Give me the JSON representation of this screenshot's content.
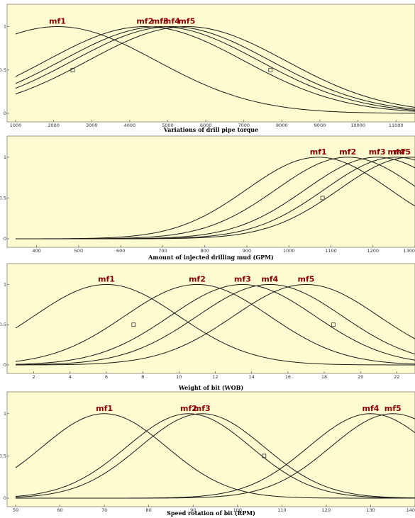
{
  "chart_data": [
    {
      "type": "line",
      "xlabel": "Variations of drill pipe torque",
      "xlim": [
        1000,
        11500
      ],
      "ylim": [
        0,
        1
      ],
      "x_ticks": [
        "1000",
        "2000",
        "3000",
        "4000",
        "5000",
        "6000",
        "7000",
        "8000",
        "9000",
        "10000",
        "11000"
      ],
      "y_ticks": [
        "0",
        "0.5",
        "1"
      ],
      "sigma": 2600,
      "series": [
        {
          "name": "mf1",
          "center": 2100
        },
        {
          "name": "mf2",
          "center": 4400
        },
        {
          "name": "mf3",
          "center": 4800
        },
        {
          "name": "mf4",
          "center": 5100
        },
        {
          "name": "mf5",
          "center": 5500
        }
      ],
      "markers": [
        [
          2500,
          0.5
        ],
        [
          7700,
          0.5
        ]
      ]
    },
    {
      "type": "line",
      "xlabel": "Amount of injected drilling mud (GPM)",
      "xlim": [
        350,
        1300
      ],
      "ylim": [
        0,
        1
      ],
      "x_ticks": [
        "400",
        "500",
        "600",
        "700",
        "800",
        "900",
        "1000",
        "1100",
        "1200",
        "1300"
      ],
      "y_ticks": [
        "0",
        "0.5",
        "1"
      ],
      "sigma": 170,
      "series": [
        {
          "name": "mf1",
          "center": 1070
        },
        {
          "name": "mf2",
          "center": 1140
        },
        {
          "name": "mf3",
          "center": 1210
        },
        {
          "name": "mf4",
          "center": 1255
        },
        {
          "name": "mf5",
          "center": 1290
        }
      ],
      "markers": [
        [
          1080,
          0.5
        ]
      ]
    },
    {
      "type": "line",
      "xlabel": "Weight of bit (WOB)",
      "xlim": [
        1,
        23
      ],
      "ylim": [
        0,
        1
      ],
      "x_ticks": [
        "2",
        "4",
        "6",
        "8",
        "10",
        "12",
        "14",
        "16",
        "18",
        "20",
        "22"
      ],
      "y_ticks": [
        "0",
        "0.5",
        "1"
      ],
      "sigma": 4,
      "series": [
        {
          "name": "mf1",
          "center": 6
        },
        {
          "name": "mf2",
          "center": 11
        },
        {
          "name": "mf3",
          "center": 13.5
        },
        {
          "name": "mf4",
          "center": 15
        },
        {
          "name": "mf5",
          "center": 17
        }
      ],
      "markers": [
        [
          7.5,
          0.5
        ],
        [
          18.5,
          0.5
        ]
      ]
    },
    {
      "type": "line",
      "xlabel": "Speed rotation of bit (RPM)",
      "xlim": [
        50,
        140
      ],
      "ylim": [
        0,
        1
      ],
      "x_ticks": [
        "50",
        "60",
        "70",
        "80",
        "90",
        "100",
        "110",
        "120",
        "130",
        "140"
      ],
      "y_ticks": [
        "0",
        "0.5",
        "1"
      ],
      "sigma": 14,
      "series": [
        {
          "name": "mf1",
          "center": 70
        },
        {
          "name": "mf2",
          "center": 89
        },
        {
          "name": "mf3",
          "center": 92
        },
        {
          "name": "mf4",
          "center": 130
        },
        {
          "name": "mf5",
          "center": 135
        }
      ],
      "markers": [
        [
          106,
          0.5
        ]
      ]
    }
  ]
}
